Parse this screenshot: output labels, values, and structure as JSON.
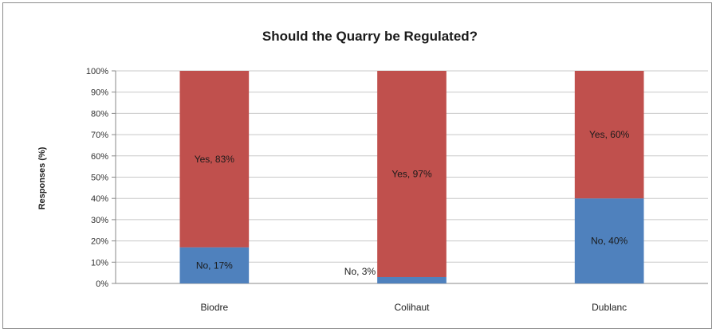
{
  "chart_data": {
    "type": "bar",
    "stacked": true,
    "title": "Should the Quarry be Regulated?",
    "xlabel": "",
    "ylabel": "Responses (%)",
    "ylim": [
      0,
      100
    ],
    "yticks": [
      "0%",
      "10%",
      "20%",
      "30%",
      "40%",
      "50%",
      "60%",
      "70%",
      "80%",
      "90%",
      "100%"
    ],
    "grid": true,
    "categories": [
      "Biodre",
      "Colihaut",
      "Dublanc"
    ],
    "series": [
      {
        "name": "No",
        "color": "#4f81bd",
        "values": [
          17,
          3,
          40
        ],
        "labels": [
          "No, 17%",
          "No, 3%",
          "No, 40%"
        ]
      },
      {
        "name": "Yes",
        "color": "#c0504d",
        "values": [
          83,
          97,
          60
        ],
        "labels": [
          "Yes, 83%",
          "Yes, 97%",
          "Yes, 60%"
        ]
      }
    ]
  }
}
